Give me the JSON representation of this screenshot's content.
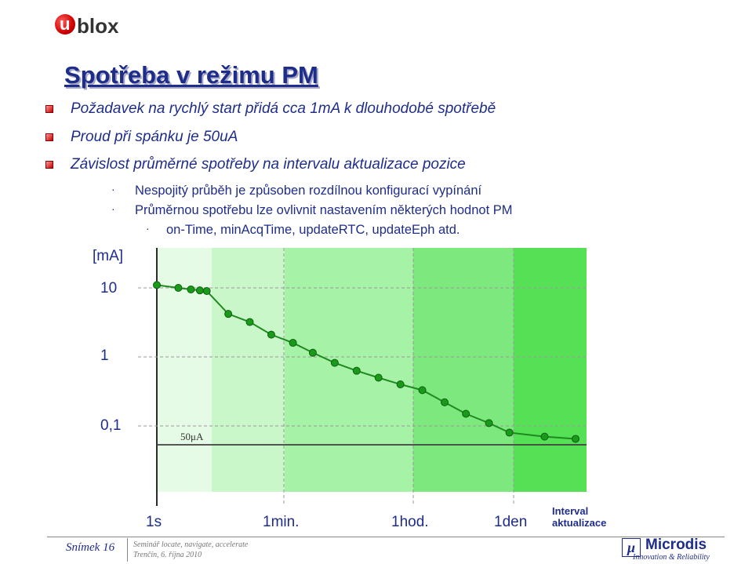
{
  "logo": {
    "letter": "u",
    "word": "blox"
  },
  "title": "Spotřeba v režimu PM",
  "bullets": [
    "Požadavek na rychlý start přidá cca 1mA k dlouhodobé spotřebě",
    "Proud při spánku je 50uA",
    "Závislost průměrné spotřeby na intervalu aktualizace pozice"
  ],
  "sub_bullets": [
    "Nespojitý průběh je způsoben rozdílnou konfigurací vypínání",
    "Průměrnou spotřebu lze ovlivnit nastavením některých hodnot PM"
  ],
  "sub_sub_bullets": [
    "on-Time, minAcqTime, updateRTC, updateEph atd."
  ],
  "bullet_glyph": "·",
  "chart_data": {
    "type": "line",
    "ylabel": "[mA]",
    "yticks": [
      "10",
      "1",
      "0,1"
    ],
    "xticks": [
      "1s",
      "1min.",
      "1hod.",
      "1den"
    ],
    "xlabel": "Interval aktualizace",
    "xlabel_lines": [
      "Interval",
      "aktualizace"
    ],
    "annotation": "50μA",
    "baseline_value": 0.05,
    "yscale": "log",
    "x_scale": "log",
    "series": [
      {
        "x": [
          "1 s",
          "2 s",
          "3 s",
          "4 s",
          "5 s",
          "10 s",
          "20 s",
          "40 s",
          "1.3 min",
          "2.5 min",
          "5 min",
          "10 min",
          "20 min",
          "40 min",
          "1.3 hod",
          "2.7 hod",
          "5.3 hod",
          "11 hod",
          "21 hod",
          "2 dny",
          "4 dny"
        ],
        "values": [
          11,
          10,
          9.5,
          9.2,
          9,
          4.2,
          3.2,
          2.1,
          1.6,
          1.15,
          0.82,
          0.63,
          0.5,
          0.4,
          0.33,
          0.22,
          0.15,
          0.11,
          0.08,
          0.07,
          0.065
        ]
      }
    ],
    "bands": [
      "#e6fbe6",
      "#c9f7c9",
      "#a6f2a6",
      "#7de87d",
      "#55e055"
    ],
    "line_color": "#1f8a1f",
    "marker_color": "#1a9a1a"
  },
  "footer": {
    "slide": "Snímek 16",
    "line1": "Seminář locate, navigate, accelerate",
    "line2": "Trenčín, 6. října 2010"
  },
  "brand": {
    "mark": "μ",
    "name": "Microdis",
    "tagline": "Innovation & Reliability"
  }
}
